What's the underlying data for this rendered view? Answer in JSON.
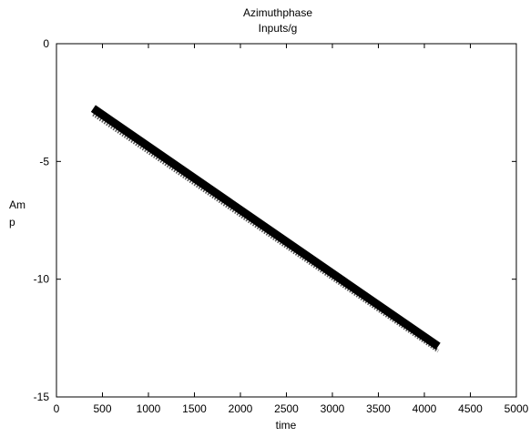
{
  "chart_data": {
    "type": "line",
    "title": [
      "Azimuthphase",
      "Inputs/g"
    ],
    "xlabel": "time",
    "ylabel": [
      "Am",
      "p"
    ],
    "xlim": [
      0,
      5000
    ],
    "ylim": [
      -15,
      0
    ],
    "xticks": [
      0,
      500,
      1000,
      1500,
      2000,
      2500,
      3000,
      3500,
      4000,
      4500,
      5000
    ],
    "yticks": [
      0,
      -5,
      -10,
      -15
    ],
    "grid": false,
    "series": [
      {
        "x": [
          400,
          4150
        ],
        "y": [
          -2.75,
          -12.85
        ],
        "style": "thick",
        "color": "#000000"
      },
      {
        "x": [
          400,
          4150
        ],
        "y": [
          -3.0,
          -13.05
        ],
        "style": "dotted",
        "color": "#555555"
      }
    ]
  }
}
